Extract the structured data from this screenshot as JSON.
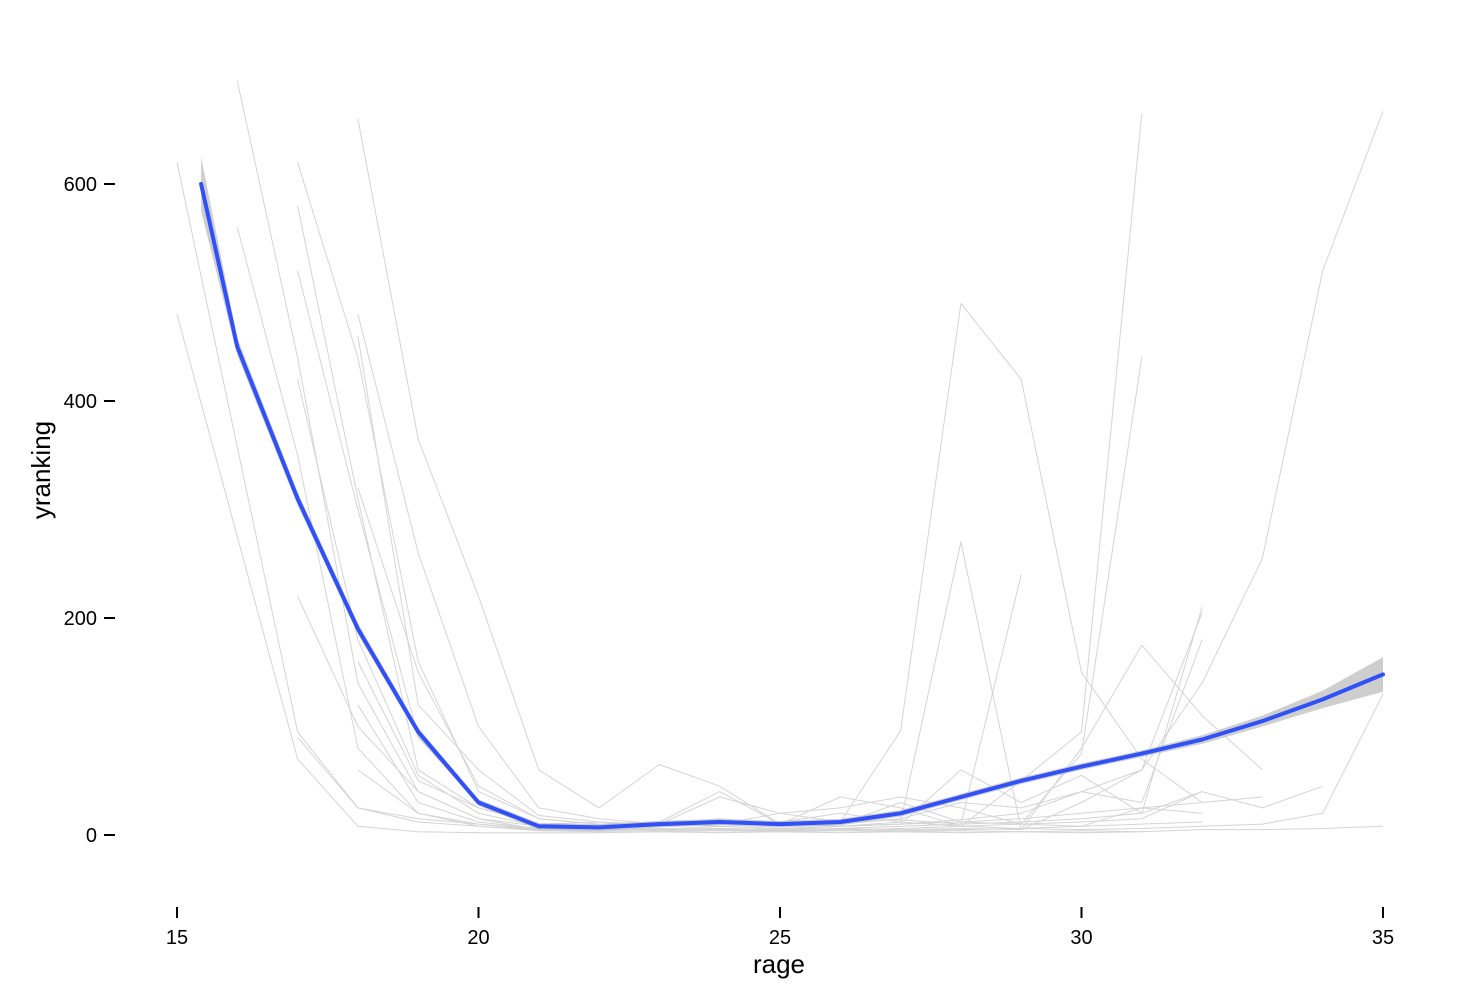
{
  "chart_data": {
    "type": "line",
    "xlabel": "rage",
    "ylabel": "yranking",
    "xlim": [
      14.6,
      35.4
    ],
    "ylim": [
      -65,
      695
    ],
    "x_ticks": [
      15,
      20,
      25,
      30,
      35
    ],
    "y_ticks": [
      0,
      200,
      400,
      600
    ],
    "x_tick_labels": [
      "15",
      "20",
      "25",
      "30",
      "35"
    ],
    "y_tick_labels": [
      "0",
      "200",
      "400",
      "600"
    ],
    "grid": false,
    "legend": "none",
    "colors": {
      "individual_lines": "#d4d4d4",
      "smooth_line": "#3050f8",
      "confidence_band": "#bdbdbd",
      "axis": "#000000"
    },
    "series": [
      {
        "values": [
          [
            15,
            480
          ],
          [
            17,
            70
          ],
          [
            18,
            8
          ],
          [
            19,
            3
          ],
          [
            20,
            2
          ],
          [
            21,
            2
          ],
          [
            22,
            2
          ],
          [
            23,
            3
          ],
          [
            24,
            2
          ],
          [
            25,
            3
          ],
          [
            26,
            2
          ],
          [
            27,
            3
          ],
          [
            28,
            2
          ],
          [
            29,
            3
          ],
          [
            30,
            2
          ],
          [
            31,
            3
          ],
          [
            32,
            5
          ],
          [
            33,
            5
          ],
          [
            34,
            6
          ],
          [
            35,
            8
          ]
        ]
      },
      {
        "values": [
          [
            15,
            620
          ],
          [
            17,
            95
          ],
          [
            18,
            25
          ],
          [
            19,
            12
          ],
          [
            20,
            8
          ],
          [
            21,
            5
          ],
          [
            22,
            4
          ],
          [
            23,
            5
          ],
          [
            24,
            6
          ],
          [
            25,
            5
          ],
          [
            26,
            6
          ],
          [
            27,
            8
          ],
          [
            28,
            10
          ],
          [
            29,
            12
          ],
          [
            30,
            15
          ],
          [
            31,
            20
          ],
          [
            32,
            40
          ]
        ]
      },
      {
        "values": [
          [
            16,
            695
          ],
          [
            17,
            440
          ],
          [
            18,
            140
          ],
          [
            19,
            40
          ],
          [
            20,
            15
          ],
          [
            21,
            8
          ],
          [
            22,
            6
          ],
          [
            23,
            5
          ],
          [
            24,
            8
          ],
          [
            25,
            6
          ],
          [
            26,
            8
          ],
          [
            27,
            10
          ],
          [
            28,
            14
          ],
          [
            29,
            20
          ],
          [
            30,
            40
          ],
          [
            31,
            60
          ],
          [
            32,
            140
          ],
          [
            33,
            255
          ],
          [
            34,
            520
          ],
          [
            35,
            667
          ]
        ]
      },
      {
        "values": [
          [
            16,
            560
          ],
          [
            17,
            350
          ],
          [
            18,
            80
          ],
          [
            19,
            20
          ],
          [
            20,
            10
          ],
          [
            21,
            6
          ],
          [
            22,
            5
          ],
          [
            23,
            6
          ],
          [
            24,
            5
          ],
          [
            25,
            4
          ],
          [
            26,
            5
          ],
          [
            27,
            6
          ],
          [
            28,
            8
          ],
          [
            29,
            6
          ],
          [
            30,
            8
          ],
          [
            31,
            10
          ],
          [
            32,
            12
          ]
        ]
      },
      {
        "values": [
          [
            17,
            620
          ],
          [
            18,
            440
          ],
          [
            19,
            160
          ],
          [
            20,
            40
          ],
          [
            21,
            15
          ],
          [
            22,
            10
          ],
          [
            23,
            12
          ],
          [
            24,
            40
          ],
          [
            25,
            10
          ],
          [
            26,
            8
          ],
          [
            27,
            10
          ],
          [
            28,
            60
          ],
          [
            29,
            30
          ],
          [
            30,
            55
          ],
          [
            31,
            20
          ],
          [
            32,
            210
          ]
        ]
      },
      {
        "values": [
          [
            17,
            580
          ],
          [
            18,
            310
          ],
          [
            19,
            60
          ],
          [
            20,
            25
          ],
          [
            21,
            10
          ],
          [
            22,
            8
          ],
          [
            23,
            10
          ],
          [
            24,
            12
          ],
          [
            25,
            8
          ],
          [
            26,
            10
          ],
          [
            27,
            30
          ],
          [
            28,
            12
          ],
          [
            29,
            10
          ],
          [
            30,
            8
          ],
          [
            31,
            25
          ],
          [
            32,
            20
          ]
        ]
      },
      {
        "values": [
          [
            17,
            520
          ],
          [
            18,
            300
          ],
          [
            19,
            90
          ],
          [
            20,
            30
          ],
          [
            21,
            10
          ],
          [
            22,
            12
          ],
          [
            23,
            8
          ],
          [
            24,
            10
          ],
          [
            25,
            20
          ],
          [
            26,
            12
          ],
          [
            27,
            96
          ],
          [
            28,
            490
          ],
          [
            29,
            420
          ],
          [
            30,
            150
          ],
          [
            31,
            70
          ],
          [
            32,
            30
          ]
        ]
      },
      {
        "values": [
          [
            17,
            420
          ],
          [
            18,
            180
          ],
          [
            19,
            55
          ],
          [
            20,
            20
          ],
          [
            21,
            8
          ],
          [
            22,
            6
          ],
          [
            23,
            8
          ],
          [
            24,
            15
          ],
          [
            25,
            10
          ],
          [
            26,
            12
          ],
          [
            27,
            14
          ],
          [
            28,
            10
          ],
          [
            29,
            240
          ]
        ]
      },
      {
        "values": [
          [
            17,
            220
          ],
          [
            18,
            100
          ],
          [
            19,
            40
          ],
          [
            20,
            15
          ],
          [
            21,
            5
          ],
          [
            22,
            4
          ],
          [
            23,
            5
          ],
          [
            24,
            6
          ],
          [
            25,
            5
          ],
          [
            26,
            8
          ],
          [
            27,
            12
          ],
          [
            28,
            270
          ],
          [
            29,
            5
          ],
          [
            30,
            30
          ],
          [
            31,
            60
          ],
          [
            32,
            205
          ]
        ]
      },
      {
        "values": [
          [
            17,
            90
          ],
          [
            18,
            25
          ],
          [
            19,
            15
          ],
          [
            20,
            10
          ],
          [
            21,
            5
          ],
          [
            22,
            4
          ],
          [
            23,
            6
          ],
          [
            24,
            5
          ],
          [
            25,
            4
          ],
          [
            26,
            6
          ],
          [
            27,
            5
          ],
          [
            28,
            6
          ],
          [
            29,
            5
          ],
          [
            30,
            80
          ],
          [
            31,
            175
          ],
          [
            32,
            110
          ],
          [
            33,
            60
          ]
        ]
      },
      {
        "values": [
          [
            18,
            660
          ],
          [
            19,
            365
          ],
          [
            20,
            220
          ],
          [
            21,
            60
          ],
          [
            22,
            25
          ],
          [
            23,
            65
          ],
          [
            24,
            45
          ],
          [
            25,
            10
          ],
          [
            26,
            35
          ],
          [
            27,
            25
          ],
          [
            28,
            8
          ],
          [
            29,
            50
          ],
          [
            30,
            95
          ],
          [
            31,
            665
          ]
        ]
      },
      {
        "values": [
          [
            18,
            480
          ],
          [
            19,
            260
          ],
          [
            20,
            100
          ],
          [
            21,
            25
          ],
          [
            22,
            15
          ],
          [
            23,
            10
          ],
          [
            24,
            35
          ],
          [
            25,
            20
          ],
          [
            26,
            25
          ],
          [
            27,
            35
          ],
          [
            28,
            25
          ],
          [
            29,
            10
          ],
          [
            30,
            75
          ],
          [
            31,
            440
          ]
        ]
      },
      {
        "values": [
          [
            18,
            460
          ],
          [
            19,
            120
          ],
          [
            20,
            60
          ],
          [
            21,
            18
          ],
          [
            22,
            12
          ],
          [
            23,
            10
          ],
          [
            24,
            12
          ],
          [
            25,
            8
          ],
          [
            26,
            10
          ],
          [
            27,
            15
          ],
          [
            28,
            30
          ],
          [
            29,
            25
          ],
          [
            30,
            40
          ],
          [
            31,
            30
          ],
          [
            32,
            180
          ]
        ]
      },
      {
        "values": [
          [
            18,
            320
          ],
          [
            19,
            150
          ],
          [
            20,
            45
          ],
          [
            21,
            15
          ],
          [
            22,
            10
          ],
          [
            23,
            8
          ],
          [
            24,
            10
          ],
          [
            25,
            12
          ],
          [
            26,
            20
          ],
          [
            27,
            12
          ],
          [
            28,
            8
          ],
          [
            29,
            10
          ],
          [
            30,
            12
          ],
          [
            31,
            15
          ],
          [
            32,
            40
          ],
          [
            33,
            25
          ],
          [
            34,
            45
          ]
        ]
      },
      {
        "values": [
          [
            18,
            160
          ],
          [
            19,
            50
          ],
          [
            20,
            25
          ],
          [
            21,
            10
          ],
          [
            22,
            8
          ],
          [
            23,
            10
          ],
          [
            24,
            8
          ],
          [
            25,
            6
          ],
          [
            26,
            8
          ],
          [
            27,
            10
          ],
          [
            28,
            12
          ],
          [
            29,
            15
          ],
          [
            30,
            20
          ],
          [
            31,
            25
          ],
          [
            32,
            30
          ],
          [
            33,
            35
          ]
        ]
      },
      {
        "values": [
          [
            18,
            120
          ],
          [
            19,
            30
          ],
          [
            20,
            12
          ],
          [
            21,
            6
          ],
          [
            22,
            5
          ],
          [
            23,
            4
          ],
          [
            24,
            5
          ],
          [
            25,
            4
          ],
          [
            26,
            5
          ],
          [
            27,
            4
          ],
          [
            28,
            5
          ],
          [
            29,
            6
          ],
          [
            30,
            5
          ],
          [
            31,
            6
          ],
          [
            32,
            8
          ],
          [
            33,
            10
          ],
          [
            34,
            20
          ],
          [
            35,
            130
          ]
        ]
      },
      {
        "values": [
          [
            18,
            60
          ],
          [
            19,
            20
          ],
          [
            20,
            8
          ],
          [
            21,
            4
          ],
          [
            22,
            3
          ],
          [
            23,
            3
          ],
          [
            24,
            4
          ],
          [
            25,
            3
          ],
          [
            26,
            4
          ],
          [
            27,
            3
          ],
          [
            28,
            4
          ],
          [
            29,
            3
          ],
          [
            30,
            4
          ],
          [
            31,
            3
          ]
        ]
      }
    ],
    "smooth": {
      "x": [
        15.4,
        16,
        17,
        18,
        19,
        20,
        21,
        22,
        23,
        24,
        25,
        26,
        27,
        28,
        29,
        30,
        31,
        32,
        33,
        34,
        35
      ],
      "y": [
        600,
        450,
        310,
        190,
        95,
        30,
        8,
        7,
        10,
        12,
        10,
        12,
        20,
        35,
        50,
        63,
        75,
        88,
        105,
        125,
        148
      ],
      "se": [
        25,
        8,
        6,
        5,
        4,
        3,
        3,
        3,
        3,
        3,
        3,
        3,
        3,
        3,
        3,
        3,
        3,
        4,
        5,
        8,
        16
      ]
    }
  }
}
